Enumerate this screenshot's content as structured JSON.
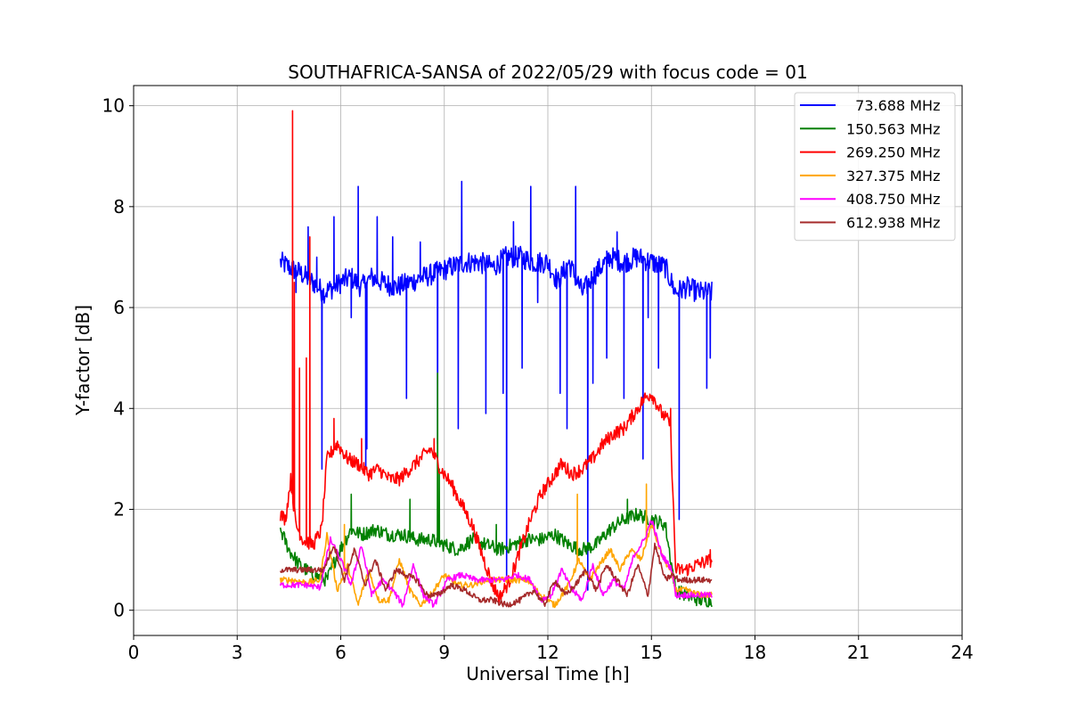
{
  "chart_data": {
    "type": "line",
    "title": "SOUTHAFRICA-SANSA of 2022/05/29 with focus code = 01",
    "xlabel": "Universal Time [h]",
    "ylabel": "Y-factor [dB]",
    "xlim": [
      0,
      24
    ],
    "ylim": [
      -0.5,
      10.4
    ],
    "xticks": [
      0,
      3,
      6,
      9,
      12,
      15,
      18,
      21,
      24
    ],
    "yticks": [
      0,
      2,
      4,
      6,
      8,
      10
    ],
    "grid": true,
    "legend_position": "top-right",
    "series": [
      {
        "name": "  73.688 MHz",
        "color": "#0000ff",
        "points": [
          [
            4.25,
            6.9
          ],
          [
            4.5,
            6.8
          ],
          [
            4.8,
            6.7
          ],
          [
            5.2,
            6.5
          ],
          [
            5.5,
            6.3
          ],
          [
            5.8,
            6.4
          ],
          [
            6.0,
            6.5
          ],
          [
            6.3,
            6.6
          ],
          [
            6.6,
            6.4
          ],
          [
            6.9,
            6.6
          ],
          [
            7.2,
            6.5
          ],
          [
            7.6,
            6.4
          ],
          [
            8.0,
            6.5
          ],
          [
            8.4,
            6.6
          ],
          [
            8.8,
            6.7
          ],
          [
            9.2,
            6.8
          ],
          [
            9.6,
            6.9
          ],
          [
            10.0,
            6.9
          ],
          [
            10.4,
            6.8
          ],
          [
            10.8,
            7.0
          ],
          [
            11.2,
            7.0
          ],
          [
            11.6,
            6.9
          ],
          [
            12.0,
            6.9
          ],
          [
            12.3,
            6.5
          ],
          [
            12.6,
            6.9
          ],
          [
            13.0,
            6.3
          ],
          [
            13.4,
            6.7
          ],
          [
            13.8,
            7.0
          ],
          [
            14.2,
            6.9
          ],
          [
            14.6,
            7.0
          ],
          [
            15.0,
            6.9
          ],
          [
            15.4,
            6.8
          ],
          [
            15.7,
            6.3
          ],
          [
            16.0,
            6.4
          ],
          [
            16.4,
            6.3
          ],
          [
            16.75,
            6.3
          ]
        ],
        "spikes": [
          [
            4.7,
            6.3
          ],
          [
            5.05,
            7.6
          ],
          [
            5.3,
            7.0
          ],
          [
            5.45,
            2.8
          ],
          [
            5.8,
            7.8
          ],
          [
            6.3,
            5.8
          ],
          [
            6.5,
            8.4
          ],
          [
            6.72,
            2.8
          ],
          [
            6.75,
            3.2
          ],
          [
            7.05,
            7.8
          ],
          [
            7.5,
            7.4
          ],
          [
            7.9,
            4.2
          ],
          [
            8.3,
            7.3
          ],
          [
            8.8,
            3.3
          ],
          [
            9.4,
            3.6
          ],
          [
            9.5,
            8.5
          ],
          [
            10.2,
            3.9
          ],
          [
            10.7,
            4.3
          ],
          [
            10.8,
            0.6
          ],
          [
            11.0,
            7.7
          ],
          [
            11.25,
            4.8
          ],
          [
            11.5,
            8.4
          ],
          [
            11.7,
            6.1
          ],
          [
            12.35,
            4.3
          ],
          [
            12.55,
            3.6
          ],
          [
            12.8,
            8.4
          ],
          [
            13.15,
            0.4
          ],
          [
            13.3,
            4.5
          ],
          [
            13.7,
            5.0
          ],
          [
            14.0,
            7.5
          ],
          [
            14.2,
            4.2
          ],
          [
            14.75,
            3.0
          ],
          [
            14.9,
            5.8
          ],
          [
            15.2,
            4.8
          ],
          [
            15.8,
            1.8
          ],
          [
            16.6,
            4.4
          ],
          [
            16.7,
            5.0
          ]
        ],
        "noise": 0.22
      },
      {
        "name": "150.563 MHz",
        "color": "#008000",
        "points": [
          [
            4.25,
            1.6
          ],
          [
            4.5,
            1.2
          ],
          [
            4.8,
            0.9
          ],
          [
            5.2,
            0.7
          ],
          [
            5.6,
            0.6
          ],
          [
            5.9,
            1.1
          ],
          [
            6.3,
            1.6
          ],
          [
            6.6,
            1.5
          ],
          [
            7.0,
            1.6
          ],
          [
            7.4,
            1.5
          ],
          [
            7.8,
            1.5
          ],
          [
            8.2,
            1.4
          ],
          [
            8.6,
            1.4
          ],
          [
            9.0,
            1.3
          ],
          [
            9.4,
            1.2
          ],
          [
            9.8,
            1.4
          ],
          [
            10.2,
            1.3
          ],
          [
            10.6,
            1.2
          ],
          [
            11.0,
            1.3
          ],
          [
            11.4,
            1.4
          ],
          [
            11.8,
            1.4
          ],
          [
            12.2,
            1.5
          ],
          [
            12.6,
            1.3
          ],
          [
            13.0,
            1.2
          ],
          [
            13.4,
            1.3
          ],
          [
            13.8,
            1.6
          ],
          [
            14.2,
            1.8
          ],
          [
            14.6,
            1.9
          ],
          [
            15.0,
            1.8
          ],
          [
            15.4,
            1.7
          ],
          [
            15.7,
            0.4
          ],
          [
            16.0,
            0.3
          ],
          [
            16.4,
            0.2
          ],
          [
            16.75,
            0.2
          ]
        ],
        "spikes": [
          [
            6.3,
            2.3
          ],
          [
            8.0,
            2.2
          ],
          [
            8.8,
            4.7
          ],
          [
            8.85,
            2.8
          ],
          [
            10.5,
            1.7
          ],
          [
            14.3,
            2.2
          ]
        ],
        "noise": 0.14
      },
      {
        "name": "269.250 MHz",
        "color": "#ff0000",
        "points": [
          [
            4.25,
            1.9
          ],
          [
            4.4,
            1.8
          ],
          [
            4.55,
            2.6
          ],
          [
            4.7,
            1.7
          ],
          [
            4.9,
            1.4
          ],
          [
            5.2,
            1.3
          ],
          [
            5.45,
            1.6
          ],
          [
            5.6,
            3.0
          ],
          [
            5.9,
            3.3
          ],
          [
            6.2,
            3.0
          ],
          [
            6.5,
            2.9
          ],
          [
            6.8,
            2.7
          ],
          [
            7.1,
            2.8
          ],
          [
            7.4,
            2.6
          ],
          [
            7.7,
            2.6
          ],
          [
            8.0,
            2.8
          ],
          [
            8.3,
            3.0
          ],
          [
            8.6,
            3.2
          ],
          [
            8.9,
            2.8
          ],
          [
            9.2,
            2.5
          ],
          [
            9.5,
            2.1
          ],
          [
            9.8,
            1.7
          ],
          [
            10.1,
            1.1
          ],
          [
            10.4,
            0.5
          ],
          [
            10.6,
            0.25
          ],
          [
            10.9,
            0.6
          ],
          [
            11.2,
            1.2
          ],
          [
            11.5,
            1.8
          ],
          [
            11.8,
            2.3
          ],
          [
            12.1,
            2.6
          ],
          [
            12.4,
            2.9
          ],
          [
            12.7,
            2.7
          ],
          [
            13.0,
            2.8
          ],
          [
            13.3,
            3.0
          ],
          [
            13.6,
            3.3
          ],
          [
            13.9,
            3.5
          ],
          [
            14.2,
            3.6
          ],
          [
            14.5,
            3.9
          ],
          [
            14.8,
            4.2
          ],
          [
            15.0,
            4.3
          ],
          [
            15.3,
            3.9
          ],
          [
            15.55,
            3.7
          ],
          [
            15.7,
            0.8
          ],
          [
            16.0,
            0.8
          ],
          [
            16.3,
            0.9
          ],
          [
            16.75,
            1.0
          ]
        ],
        "spikes": [
          [
            4.6,
            9.9
          ],
          [
            4.65,
            6.5
          ],
          [
            4.8,
            4.8
          ],
          [
            5.0,
            5.0
          ],
          [
            5.1,
            7.4
          ],
          [
            5.8,
            3.8
          ],
          [
            6.6,
            3.4
          ],
          [
            8.7,
            3.4
          ],
          [
            15.55,
            4.0
          ],
          [
            16.7,
            1.2
          ]
        ],
        "noise": 0.14
      },
      {
        "name": "327.375 MHz",
        "color": "#ffa500",
        "points": [
          [
            4.25,
            0.6
          ],
          [
            4.6,
            0.6
          ],
          [
            5.0,
            0.55
          ],
          [
            5.4,
            0.6
          ],
          [
            5.6,
            1.5
          ],
          [
            5.9,
            0.4
          ],
          [
            6.2,
            0.9
          ],
          [
            6.5,
            0.1
          ],
          [
            6.8,
            0.8
          ],
          [
            7.1,
            0.2
          ],
          [
            7.4,
            0.2
          ],
          [
            7.7,
            1.0
          ],
          [
            8.0,
            0.4
          ],
          [
            8.3,
            0.1
          ],
          [
            8.6,
            0.3
          ],
          [
            9.0,
            0.7
          ],
          [
            9.4,
            0.5
          ],
          [
            9.8,
            0.5
          ],
          [
            10.2,
            0.6
          ],
          [
            10.6,
            0.6
          ],
          [
            11.0,
            0.6
          ],
          [
            11.4,
            0.6
          ],
          [
            11.8,
            0.3
          ],
          [
            12.2,
            0.1
          ],
          [
            12.6,
            0.5
          ],
          [
            12.9,
            1.0
          ],
          [
            13.2,
            0.6
          ],
          [
            13.5,
            0.9
          ],
          [
            13.8,
            1.2
          ],
          [
            14.1,
            0.8
          ],
          [
            14.4,
            1.2
          ],
          [
            14.7,
            1.0
          ],
          [
            15.0,
            1.7
          ],
          [
            15.3,
            1.1
          ],
          [
            15.6,
            0.7
          ],
          [
            15.7,
            0.4
          ],
          [
            16.0,
            0.4
          ],
          [
            16.4,
            0.3
          ],
          [
            16.75,
            0.3
          ]
        ],
        "spikes": [
          [
            12.85,
            2.3
          ],
          [
            14.85,
            2.5
          ],
          [
            6.1,
            1.7
          ]
        ],
        "noise": 0.06
      },
      {
        "name": "408.750 MHz",
        "color": "#ff00ff",
        "points": [
          [
            4.25,
            0.5
          ],
          [
            4.6,
            0.5
          ],
          [
            5.0,
            0.5
          ],
          [
            5.4,
            0.45
          ],
          [
            5.7,
            1.4
          ],
          [
            6.0,
            1.0
          ],
          [
            6.3,
            0.5
          ],
          [
            6.6,
            1.3
          ],
          [
            6.9,
            0.3
          ],
          [
            7.2,
            0.6
          ],
          [
            7.5,
            0.4
          ],
          [
            7.8,
            0.1
          ],
          [
            8.1,
            0.9
          ],
          [
            8.4,
            0.3
          ],
          [
            8.7,
            0.1
          ],
          [
            9.1,
            0.6
          ],
          [
            9.5,
            0.7
          ],
          [
            9.9,
            0.6
          ],
          [
            10.3,
            0.6
          ],
          [
            10.7,
            0.6
          ],
          [
            11.1,
            0.7
          ],
          [
            11.5,
            0.6
          ],
          [
            11.8,
            0.2
          ],
          [
            12.1,
            0.3
          ],
          [
            12.4,
            0.8
          ],
          [
            12.7,
            0.4
          ],
          [
            13.0,
            0.2
          ],
          [
            13.3,
            0.9
          ],
          [
            13.6,
            0.3
          ],
          [
            13.9,
            0.6
          ],
          [
            14.2,
            0.4
          ],
          [
            14.5,
            1.1
          ],
          [
            14.8,
            1.4
          ],
          [
            15.0,
            1.8
          ],
          [
            15.3,
            1.1
          ],
          [
            15.6,
            0.8
          ],
          [
            15.7,
            0.3
          ],
          [
            16.0,
            0.3
          ],
          [
            16.4,
            0.3
          ],
          [
            16.75,
            0.3
          ]
        ],
        "spikes": [],
        "noise": 0.06
      },
      {
        "name": "612.938 MHz",
        "color": "#a52a2a",
        "points": [
          [
            4.25,
            0.8
          ],
          [
            4.6,
            0.8
          ],
          [
            5.0,
            0.8
          ],
          [
            5.5,
            0.8
          ],
          [
            5.8,
            1.3
          ],
          [
            6.1,
            0.6
          ],
          [
            6.4,
            1.2
          ],
          [
            6.7,
            0.5
          ],
          [
            7.0,
            1.0
          ],
          [
            7.3,
            0.4
          ],
          [
            7.6,
            0.8
          ],
          [
            7.9,
            0.7
          ],
          [
            8.2,
            0.6
          ],
          [
            8.5,
            0.3
          ],
          [
            8.8,
            0.3
          ],
          [
            9.2,
            0.5
          ],
          [
            9.6,
            0.4
          ],
          [
            10.0,
            0.2
          ],
          [
            10.4,
            0.2
          ],
          [
            10.8,
            0.1
          ],
          [
            11.2,
            0.2
          ],
          [
            11.6,
            0.4
          ],
          [
            11.9,
            0.1
          ],
          [
            12.2,
            0.6
          ],
          [
            12.5,
            0.3
          ],
          [
            12.8,
            0.5
          ],
          [
            13.1,
            0.8
          ],
          [
            13.4,
            0.4
          ],
          [
            13.7,
            0.9
          ],
          [
            14.0,
            0.6
          ],
          [
            14.3,
            0.3
          ],
          [
            14.6,
            0.9
          ],
          [
            14.9,
            0.3
          ],
          [
            15.1,
            1.3
          ],
          [
            15.4,
            0.6
          ],
          [
            15.6,
            0.7
          ],
          [
            15.8,
            0.6
          ],
          [
            16.2,
            0.6
          ],
          [
            16.75,
            0.6
          ]
        ],
        "spikes": [],
        "noise": 0.06
      }
    ]
  }
}
